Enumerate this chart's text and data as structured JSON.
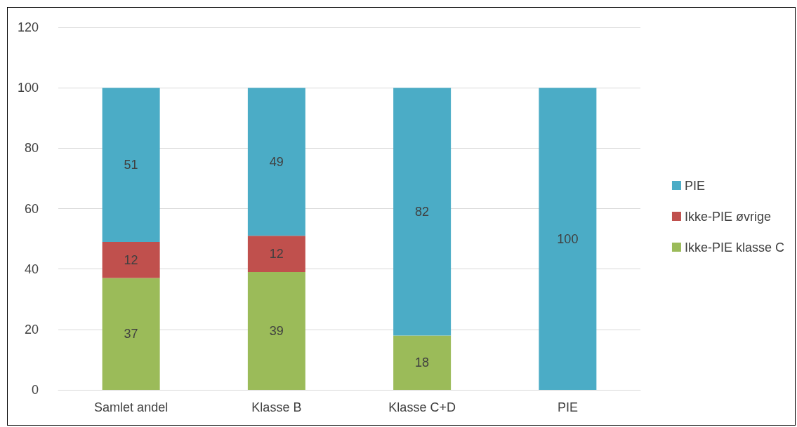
{
  "chart_data": {
    "type": "bar",
    "stacked": true,
    "categories": [
      "Samlet andel",
      "Klasse B",
      "Klasse C+D",
      "PIE"
    ],
    "series": [
      {
        "name": "Ikke-PIE klasse C",
        "color": "#9bbb59",
        "values": [
          37,
          39,
          18,
          null
        ]
      },
      {
        "name": "Ikke-PIE øvrige",
        "color": "#c0504d",
        "values": [
          12,
          12,
          null,
          null
        ]
      },
      {
        "name": "PIE",
        "color": "#4bacc6",
        "values": [
          51,
          49,
          82,
          100
        ]
      }
    ],
    "ylim": [
      0,
      120
    ],
    "yticks": [
      0,
      20,
      40,
      60,
      80,
      100,
      120
    ],
    "grid": "y",
    "legend": "right",
    "data_labels": true
  }
}
